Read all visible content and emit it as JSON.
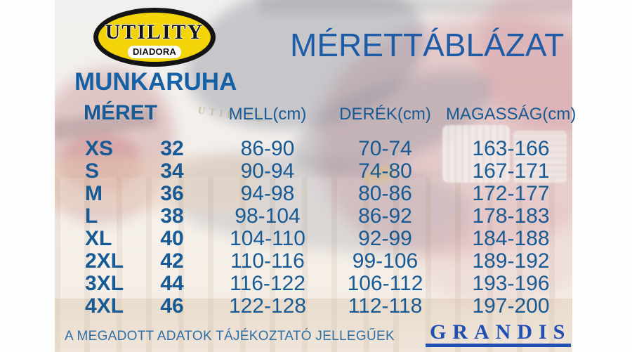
{
  "brand_logo": {
    "primary": "UTILITY",
    "secondary": "DIADORA"
  },
  "header": {
    "category": "MUNKARUHA",
    "title": "MÉRETTÁBLÁZAT"
  },
  "size_table": {
    "row_header_label": "MÉRET",
    "column_headers": [
      "MELL(cm)",
      "DERÉK(cm)",
      "MAGASSÁG(cm)"
    ],
    "rows": [
      {
        "size": "XS",
        "number": "32",
        "chest": "86-90",
        "waist": "70-74",
        "height": "163-166"
      },
      {
        "size": "S",
        "number": "34",
        "chest": "90-94",
        "waist": "74-80",
        "height": "167-171"
      },
      {
        "size": "M",
        "number": "36",
        "chest": "94-98",
        "waist": "80-86",
        "height": "172-177"
      },
      {
        "size": "L",
        "number": "38",
        "chest": "98-104",
        "waist": "86-92",
        "height": "178-183"
      },
      {
        "size": "XL",
        "number": "40",
        "chest": "104-110",
        "waist": "92-99",
        "height": "184-188"
      },
      {
        "size": "2XL",
        "number": "42",
        "chest": "110-116",
        "waist": "99-106",
        "height": "189-192"
      },
      {
        "size": "3XL",
        "number": "44",
        "chest": "116-122",
        "waist": "106-112",
        "height": "193-196"
      },
      {
        "size": "4XL",
        "number": "46",
        "chest": "122-128",
        "waist": "112-118",
        "height": "197-200"
      }
    ]
  },
  "footer": {
    "disclaimer": "A MEGADOTT ADATOK TÁJÉKOZTATÓ JELLEGŰEK",
    "distributor": "GRANDIS"
  },
  "background": {
    "cap_embroidery": "UTILITY"
  },
  "colors": {
    "title_blue": "#1e5ca8",
    "table_blue": "#175a94",
    "note_blue": "#2f6fa5",
    "grandis_blue": "#2050b4",
    "logo_yellow": "#f2d409",
    "logo_black": "#141414"
  }
}
